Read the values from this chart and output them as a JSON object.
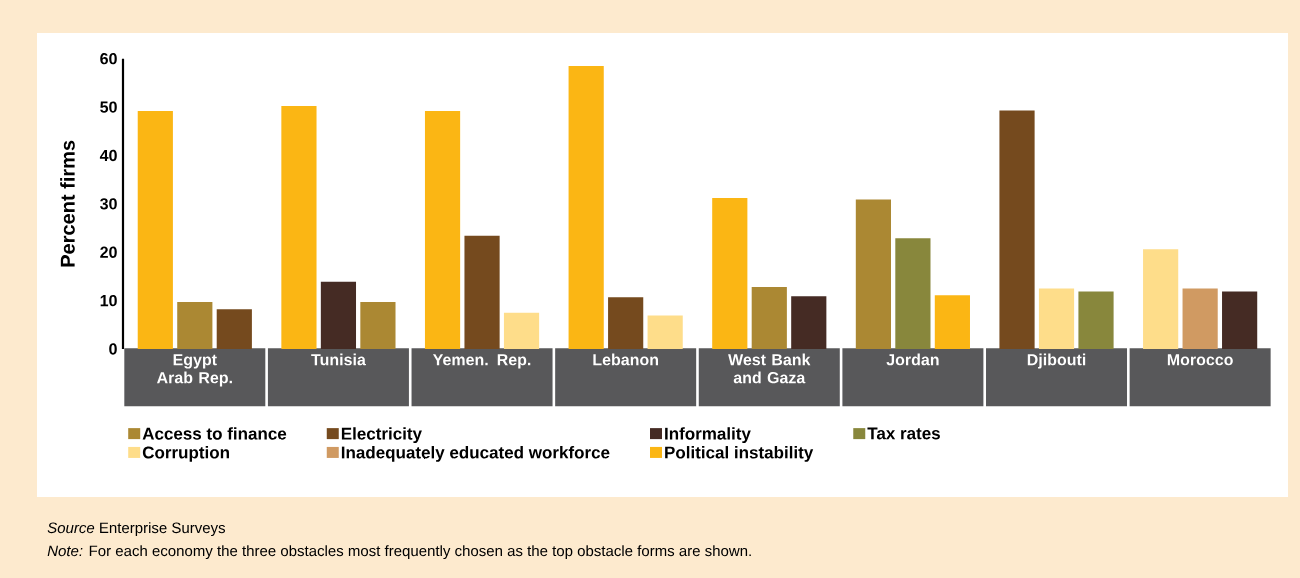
{
  "chart_data": {
    "type": "bar",
    "ylabel": "Percent firms",
    "categories": [
      "Egypt Arab Rep.",
      "Tunisia",
      "Yemen. Rep.",
      "Lebanon",
      "West Bank and Gaza",
      "Jordan",
      "Djibouti",
      "Morocco"
    ],
    "series": [
      {
        "name": "Access to finance",
        "color": "#ab8833",
        "values": [
          9.7,
          9.7,
          null,
          null,
          12.8,
          30.9,
          null,
          null
        ]
      },
      {
        "name": "Electricity",
        "color": "#754a1e",
        "values": [
          8.2,
          null,
          23.4,
          10.7,
          null,
          null,
          49.3,
          null
        ]
      },
      {
        "name": "Informality",
        "color": "#452b24",
        "values": [
          null,
          13.9,
          null,
          null,
          10.9,
          null,
          null,
          11.9
        ]
      },
      {
        "name": "Tax rates",
        "color": "#88873c",
        "values": [
          null,
          null,
          null,
          null,
          null,
          22.9,
          11.9,
          null
        ]
      },
      {
        "name": "Corruption",
        "color": "#fedd8a",
        "values": [
          null,
          null,
          7.5,
          6.9,
          null,
          null,
          12.5,
          20.6
        ]
      },
      {
        "name": "Inadequately educated workforce",
        "color": "#d09a62",
        "values": [
          null,
          null,
          null,
          null,
          null,
          null,
          null,
          12.5
        ]
      },
      {
        "name": "Political instability",
        "color": "#fbb614",
        "values": [
          49.2,
          50.2,
          49.2,
          58.5,
          31.2,
          11.1,
          null,
          null
        ]
      }
    ],
    "ylim": [
      0,
      60
    ],
    "yticks": [
      0,
      10,
      20,
      30,
      40,
      50,
      60
    ],
    "legend": "bottom",
    "annotations": [
      "*Source* Enterprise Surveys",
      "*Note:* For each economy the three obstacles most frequently chosen as the top obstacle forms are shown."
    ]
  }
}
